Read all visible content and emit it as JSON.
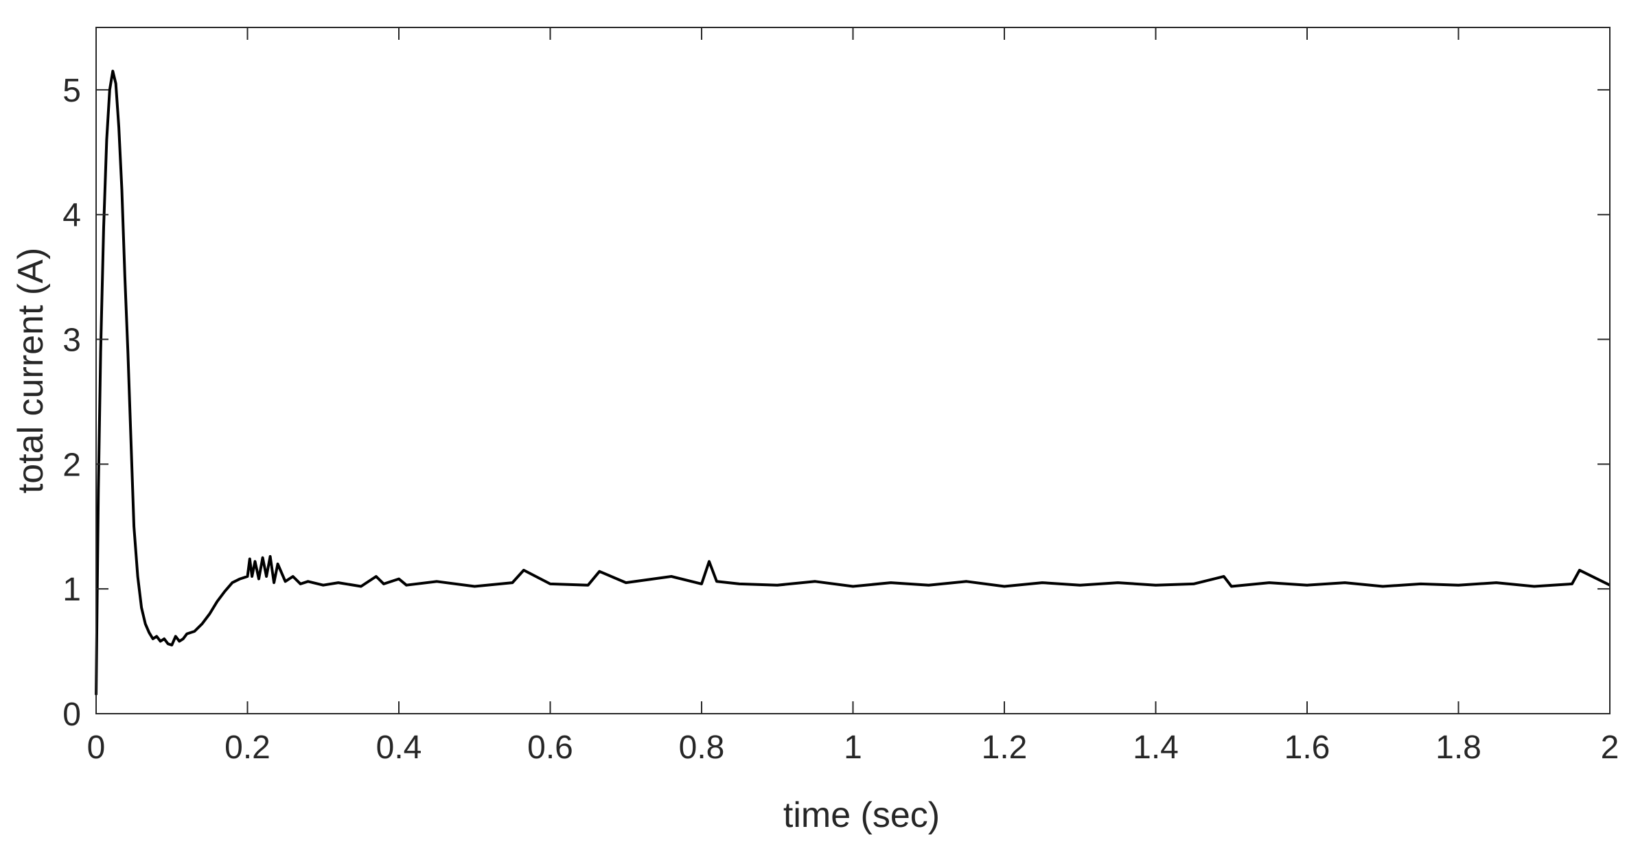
{
  "chart_data": {
    "type": "line",
    "xlabel": "time (sec)",
    "ylabel": "total current (A)",
    "xlim": [
      0,
      2
    ],
    "ylim": [
      0,
      5.5
    ],
    "xticks": [
      0,
      0.2,
      0.4,
      0.6,
      0.8,
      1,
      1.2,
      1.4,
      1.6,
      1.8,
      2
    ],
    "xtick_labels": [
      "0",
      "0.2",
      "0.4",
      "0.6",
      "0.8",
      "1",
      "1.2",
      "1.4",
      "1.6",
      "1.8",
      "2"
    ],
    "yticks": [
      0,
      1,
      2,
      3,
      4,
      5
    ],
    "ytick_labels": [
      "0",
      "1",
      "2",
      "3",
      "4",
      "5"
    ],
    "grid": false,
    "line_color": "#000000",
    "axes_color": "#262626",
    "series": [
      {
        "x": [
          0,
          0.003,
          0.006,
          0.01,
          0.014,
          0.018,
          0.022,
          0.026,
          0.03,
          0.034,
          0.038,
          0.042,
          0.046,
          0.05,
          0.055,
          0.06,
          0.065,
          0.07,
          0.075,
          0.08,
          0.085,
          0.09,
          0.095,
          0.1,
          0.105,
          0.11,
          0.115,
          0.12,
          0.13,
          0.14,
          0.15,
          0.16,
          0.17,
          0.18,
          0.19,
          0.2,
          0.203,
          0.206,
          0.21,
          0.215,
          0.22,
          0.225,
          0.23,
          0.235,
          0.24,
          0.25,
          0.26,
          0.27,
          0.28,
          0.3,
          0.32,
          0.35,
          0.37,
          0.38,
          0.4,
          0.41,
          0.45,
          0.5,
          0.55,
          0.565,
          0.6,
          0.65,
          0.665,
          0.7,
          0.76,
          0.8,
          0.81,
          0.82,
          0.85,
          0.9,
          0.95,
          1.0,
          1.05,
          1.1,
          1.15,
          1.2,
          1.25,
          1.3,
          1.35,
          1.4,
          1.45,
          1.49,
          1.5,
          1.55,
          1.6,
          1.65,
          1.7,
          1.75,
          1.8,
          1.85,
          1.9,
          1.95,
          1.96,
          2.0
        ],
        "y": [
          0.15,
          1.8,
          2.9,
          3.9,
          4.6,
          5.0,
          5.15,
          5.05,
          4.7,
          4.2,
          3.5,
          2.9,
          2.2,
          1.5,
          1.1,
          0.85,
          0.72,
          0.65,
          0.6,
          0.62,
          0.58,
          0.6,
          0.56,
          0.55,
          0.62,
          0.58,
          0.6,
          0.64,
          0.66,
          0.72,
          0.8,
          0.9,
          0.98,
          1.05,
          1.08,
          1.1,
          1.24,
          1.1,
          1.22,
          1.08,
          1.25,
          1.1,
          1.26,
          1.05,
          1.2,
          1.06,
          1.1,
          1.04,
          1.06,
          1.03,
          1.05,
          1.02,
          1.1,
          1.04,
          1.08,
          1.03,
          1.06,
          1.02,
          1.05,
          1.15,
          1.04,
          1.03,
          1.14,
          1.05,
          1.1,
          1.04,
          1.22,
          1.06,
          1.04,
          1.03,
          1.06,
          1.02,
          1.05,
          1.03,
          1.06,
          1.02,
          1.05,
          1.03,
          1.05,
          1.03,
          1.04,
          1.1,
          1.02,
          1.05,
          1.03,
          1.05,
          1.02,
          1.04,
          1.03,
          1.05,
          1.02,
          1.04,
          1.15,
          1.03
        ]
      }
    ]
  }
}
